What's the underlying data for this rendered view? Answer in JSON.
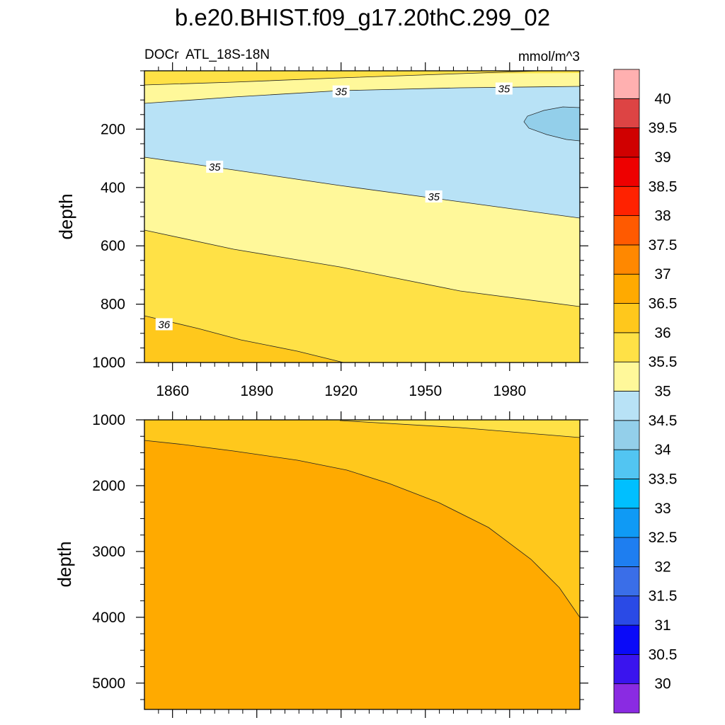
{
  "title": "b.e20.BHIST.f09_g17.20thC.299_02",
  "chart_data": {
    "type": "contour",
    "variable": "DOCr",
    "region": "ATL_18S-18N",
    "units": "mmol/m^3",
    "xlabel": "",
    "ylabel": "depth",
    "x_ticks": [
      1860,
      1890,
      1920,
      1950,
      1980
    ],
    "xlim": [
      1850,
      2005
    ],
    "panels": [
      {
        "name": "upper",
        "ylim": [
          0,
          1000
        ],
        "y_ticks": [
          200,
          400,
          600,
          800,
          1000
        ],
        "y_reversed": true,
        "regions": [
          {
            "level_range": [
              35.5,
              36
            ],
            "description": "surface thin band (0-55 m)"
          },
          {
            "level_range": [
              35,
              35.5
            ],
            "description": "near-surface band (~20-110 m)"
          },
          {
            "level_range": [
              34.5,
              35
            ],
            "description": "upper layer ~110-500 m"
          },
          {
            "level_range": [
              34,
              34.5
            ],
            "description": "small pocket ~1985-2005 at ~120-240 m"
          },
          {
            "level_range": [
              35,
              35.5
            ],
            "description": "middle band ~300-800 m"
          },
          {
            "level_range": [
              35.5,
              36
            ],
            "description": "lower band ~550-1000 m"
          },
          {
            "level_range": [
              36,
              36.5
            ],
            "description": "bottom-left wedge below 36 contour"
          }
        ],
        "contour_labels": [
          {
            "text": "35",
            "x": 1920,
            "depth": 72
          },
          {
            "text": "35",
            "x": 1978,
            "depth": 62
          },
          {
            "text": "35",
            "x": 1875,
            "depth": 330
          },
          {
            "text": "35",
            "x": 1953,
            "depth": 432
          },
          {
            "text": "36",
            "x": 1857,
            "depth": 870
          }
        ]
      },
      {
        "name": "lower",
        "ylim": [
          1000,
          5400
        ],
        "y_ticks": [
          1000,
          2000,
          3000,
          4000,
          5000
        ],
        "y_reversed": true,
        "regions": [
          {
            "level_range": [
              35.5,
              36
            ],
            "description": "upper-right sliver near 1000-1250 m"
          },
          {
            "level_range": [
              36,
              36.5
            ],
            "description": "band between ~1000 m and the 36.5 contour"
          },
          {
            "level_range": [
              36.5,
              37
            ],
            "description": "deep water below ~1300-3900 m"
          }
        ]
      }
    ],
    "colorbar": {
      "levels": [
        30,
        30.5,
        31,
        31.5,
        32,
        32.5,
        33,
        33.5,
        34,
        34.5,
        35,
        35.5,
        36,
        36.5,
        37,
        37.5,
        38,
        38.5,
        39,
        39.5,
        40
      ],
      "level_labels": [
        "30",
        "30.5",
        "31",
        "31.5",
        "32",
        "32.5",
        "33",
        "33.5",
        "34",
        "34.5",
        "35",
        "35.5",
        "36",
        "36.5",
        "37",
        "37.5",
        "38",
        "38.5",
        "39",
        "39.5",
        "40"
      ],
      "colors": [
        "#8a2be2",
        "#3a14ee",
        "#0a0af8",
        "#2a4ae6",
        "#3a6ee8",
        "#1e7ef0",
        "#0f9af5",
        "#00bfff",
        "#52c5f2",
        "#93cfea",
        "#b8e2f6",
        "#fff89a",
        "#ffe146",
        "#ffc81c",
        "#ffaa00",
        "#ff8800",
        "#ff5a00",
        "#ff2200",
        "#ee0000",
        "#d00000",
        "#dd4444",
        "#ffb0b0"
      ]
    }
  }
}
